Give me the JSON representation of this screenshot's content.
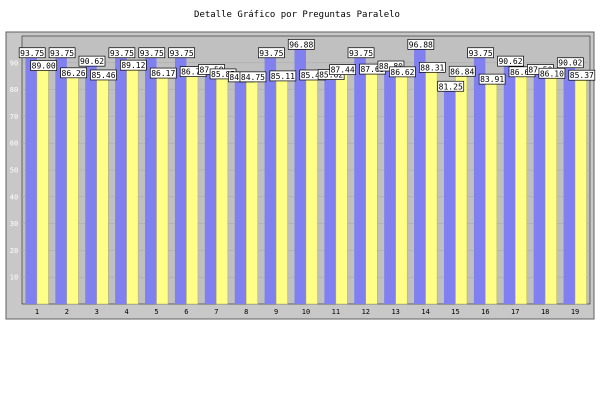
{
  "chart_data": {
    "type": "bar",
    "title": "Detalle Gráfico por Preguntas Paralelo",
    "categories": [
      "1",
      "2",
      "3",
      "4",
      "5",
      "6",
      "7",
      "8",
      "9",
      "10",
      "11",
      "12",
      "13",
      "14",
      "15",
      "16",
      "17",
      "18",
      "19"
    ],
    "series": [
      {
        "values": [
          93.75,
          93.75,
          90.62,
          93.75,
          93.75,
          93.75,
          87.5,
          84.75,
          93.75,
          96.88,
          85.62,
          93.75,
          88.8,
          96.88,
          81.25,
          93.75,
          90.62,
          87.5,
          90.02
        ],
        "color": "#8080f0"
      },
      {
        "values": [
          89.0,
          86.26,
          85.46,
          89.12,
          86.17,
          86.71,
          85.85,
          84.75,
          85.11,
          85.45,
          87.44,
          87.65,
          86.62,
          88.31,
          86.84,
          83.91,
          86.64,
          86.1,
          85.37
        ],
        "color": "#ffff88"
      }
    ],
    "ylim": [
      0,
      100
    ],
    "yticks": [
      10,
      20,
      30,
      40,
      50,
      60,
      70,
      80,
      90
    ],
    "grid": true,
    "plot_bg": "#c0c0c0",
    "frame_bg": "#c8c8c8",
    "tick_label_color_light": "#ffffff"
  }
}
